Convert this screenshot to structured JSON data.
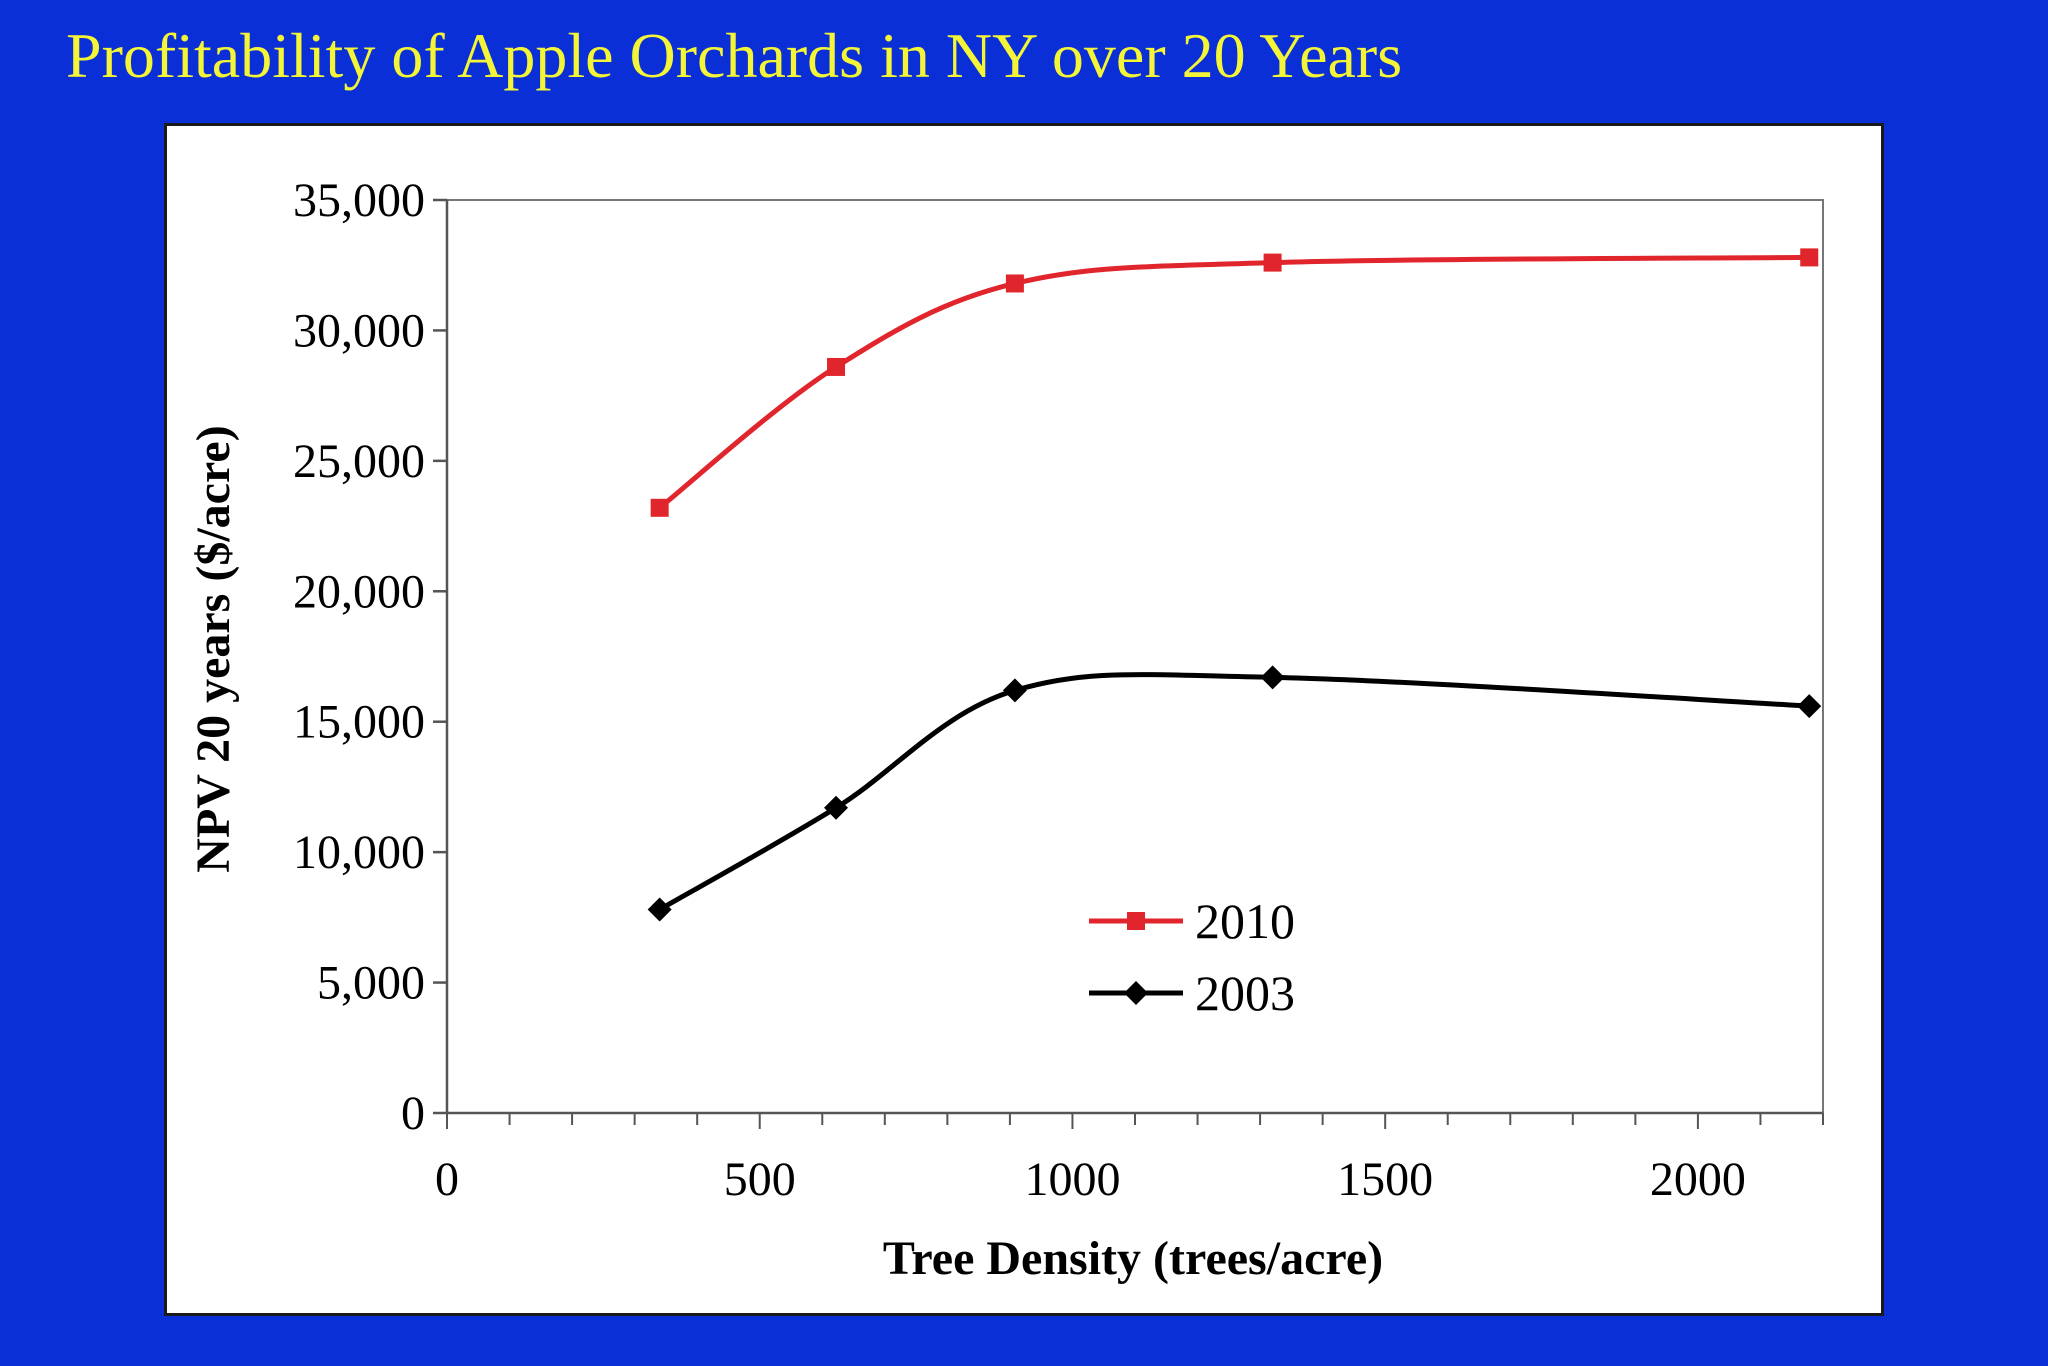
{
  "slide": {
    "title": "Profitability of Apple Orchards in NY over 20 Years",
    "background_color": "#0a2fd6",
    "title_color": "#f3f536"
  },
  "chart_data": {
    "type": "line",
    "title": "",
    "xlabel": "Tree Density (trees/acre)",
    "ylabel": "NPV 20 years ($/acre)",
    "xlim": [
      0,
      2200
    ],
    "ylim": [
      0,
      35000
    ],
    "x_ticks": [
      0,
      500,
      1000,
      1500,
      2000
    ],
    "x_tick_labels": [
      "0",
      "500",
      "1000",
      "1500",
      "2000"
    ],
    "x_minor_step": 100,
    "y_ticks": [
      0,
      5000,
      10000,
      15000,
      20000,
      25000,
      30000,
      35000
    ],
    "y_tick_labels": [
      "0",
      "5,000",
      "10,000",
      "15,000",
      "20,000",
      "25,000",
      "30,000",
      "35,000"
    ],
    "grid": false,
    "smooth": true,
    "legend_position": "center-bottom",
    "series": [
      {
        "name": "2010",
        "color": "#e0262c",
        "marker": "square",
        "x": [
          340,
          622,
          908,
          1320,
          2178
        ],
        "y": [
          23200,
          28600,
          31800,
          32600,
          32800
        ]
      },
      {
        "name": "2003",
        "color": "#000000",
        "marker": "diamond",
        "x": [
          340,
          622,
          908,
          1320,
          2178
        ],
        "y": [
          7800,
          11700,
          16200,
          16700,
          15600
        ]
      }
    ]
  }
}
